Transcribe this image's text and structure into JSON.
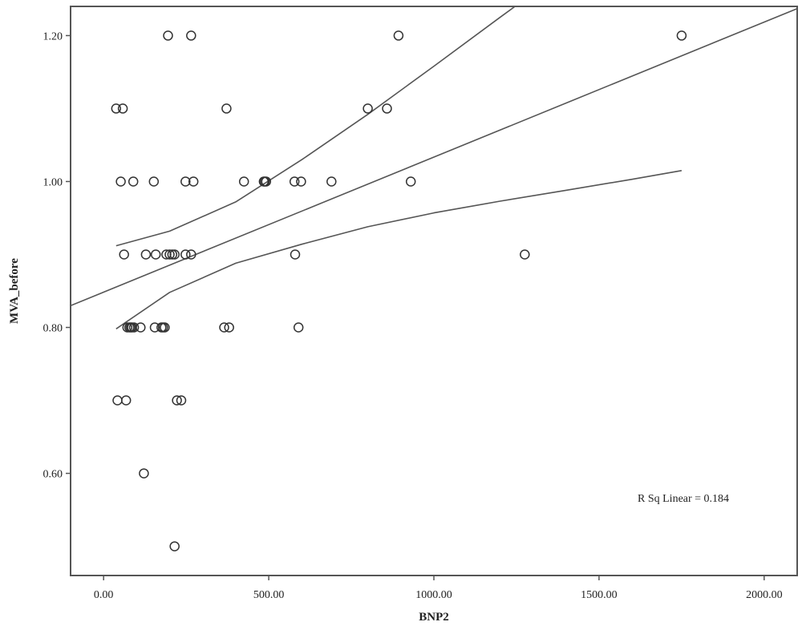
{
  "chart_data": {
    "type": "scatter",
    "xlabel": "BNP2",
    "ylabel": "MVA_before",
    "xlim": [
      -100,
      2100
    ],
    "ylim": [
      0.46,
      1.24
    ],
    "x_ticks": [
      {
        "value": 0,
        "label": "0.00"
      },
      {
        "value": 500,
        "label": "500.00"
      },
      {
        "value": 1000,
        "label": "1000.00"
      },
      {
        "value": 1500,
        "label": "1500.00"
      },
      {
        "value": 2000,
        "label": "2000.00"
      }
    ],
    "y_ticks": [
      {
        "value": 0.6,
        "label": "0.60"
      },
      {
        "value": 0.8,
        "label": "0.80"
      },
      {
        "value": 1.0,
        "label": "1.00"
      },
      {
        "value": 1.2,
        "label": "1.20"
      }
    ],
    "annotation": "R Sq Linear = 0.184",
    "grid": false,
    "points": [
      {
        "x": 195,
        "y": 1.2
      },
      {
        "x": 265,
        "y": 1.2
      },
      {
        "x": 893,
        "y": 1.2
      },
      {
        "x": 1750,
        "y": 1.2
      },
      {
        "x": 38,
        "y": 1.1
      },
      {
        "x": 58,
        "y": 1.1
      },
      {
        "x": 372,
        "y": 1.1
      },
      {
        "x": 800,
        "y": 1.1
      },
      {
        "x": 858,
        "y": 1.1
      },
      {
        "x": 52,
        "y": 1.0
      },
      {
        "x": 90,
        "y": 1.0
      },
      {
        "x": 152,
        "y": 1.0
      },
      {
        "x": 248,
        "y": 1.0
      },
      {
        "x": 272,
        "y": 1.0
      },
      {
        "x": 425,
        "y": 1.0
      },
      {
        "x": 485,
        "y": 1.0
      },
      {
        "x": 488,
        "y": 1.0
      },
      {
        "x": 492,
        "y": 1.0
      },
      {
        "x": 578,
        "y": 1.0
      },
      {
        "x": 598,
        "y": 1.0
      },
      {
        "x": 690,
        "y": 1.0
      },
      {
        "x": 930,
        "y": 1.0
      },
      {
        "x": 62,
        "y": 0.9
      },
      {
        "x": 128,
        "y": 0.9
      },
      {
        "x": 158,
        "y": 0.9
      },
      {
        "x": 190,
        "y": 0.9
      },
      {
        "x": 200,
        "y": 0.9
      },
      {
        "x": 208,
        "y": 0.9
      },
      {
        "x": 215,
        "y": 0.9
      },
      {
        "x": 248,
        "y": 0.9
      },
      {
        "x": 265,
        "y": 0.9
      },
      {
        "x": 580,
        "y": 0.9
      },
      {
        "x": 1275,
        "y": 0.9
      },
      {
        "x": 72,
        "y": 0.8
      },
      {
        "x": 78,
        "y": 0.8
      },
      {
        "x": 82,
        "y": 0.8
      },
      {
        "x": 86,
        "y": 0.8
      },
      {
        "x": 92,
        "y": 0.8
      },
      {
        "x": 112,
        "y": 0.8
      },
      {
        "x": 155,
        "y": 0.8
      },
      {
        "x": 175,
        "y": 0.8
      },
      {
        "x": 180,
        "y": 0.8
      },
      {
        "x": 185,
        "y": 0.8
      },
      {
        "x": 365,
        "y": 0.8
      },
      {
        "x": 380,
        "y": 0.8
      },
      {
        "x": 590,
        "y": 0.8
      },
      {
        "x": 42,
        "y": 0.7
      },
      {
        "x": 68,
        "y": 0.7
      },
      {
        "x": 222,
        "y": 0.7
      },
      {
        "x": 235,
        "y": 0.7
      },
      {
        "x": 122,
        "y": 0.6
      },
      {
        "x": 215,
        "y": 0.5
      }
    ],
    "series": [
      {
        "type": "line",
        "x": [
          -110,
          2100
        ],
        "y": [
          0.828,
          1.237
        ]
      },
      {
        "type": "line",
        "x": [
          38,
          200,
          400,
          600,
          800,
          1000,
          1200,
          1336
        ],
        "y": [
          0.912,
          0.932,
          0.972,
          1.03,
          1.092,
          1.158,
          1.225,
          1.27
        ]
      },
      {
        "type": "line",
        "x": [
          38,
          200,
          400,
          600,
          800,
          1000,
          1200,
          1400,
          1600,
          1750
        ],
        "y": [
          0.798,
          0.848,
          0.888,
          0.914,
          0.938,
          0.957,
          0.973,
          0.988,
          1.003,
          1.015
        ]
      }
    ]
  }
}
